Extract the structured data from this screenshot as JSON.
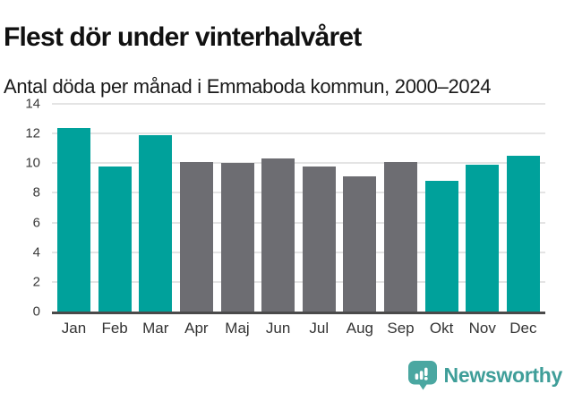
{
  "chart_data": {
    "type": "bar",
    "title": "Flest dör under vinterhalvåret",
    "subtitle": "Antal döda per månad i Emmaboda kommun, 2000–2024",
    "categories": [
      "Jan",
      "Feb",
      "Mar",
      "Apr",
      "Maj",
      "Jun",
      "Jul",
      "Aug",
      "Sep",
      "Okt",
      "Nov",
      "Dec"
    ],
    "values": [
      12.4,
      9.8,
      11.9,
      10.1,
      10.0,
      10.3,
      9.8,
      9.1,
      10.1,
      8.8,
      9.9,
      10.5
    ],
    "highlighted": [
      true,
      true,
      true,
      false,
      false,
      false,
      false,
      false,
      false,
      true,
      true,
      true
    ],
    "colors": {
      "winter_bar": "#00a19b",
      "summer_bar": "#6d6d72",
      "gridline": "#e4e4e4",
      "axis_line": "#4a4a4a"
    },
    "xlabel": "",
    "ylabel": "",
    "ylim": [
      0,
      14
    ],
    "yticks": [
      0,
      2,
      4,
      6,
      8,
      10,
      12,
      14
    ],
    "grid": true,
    "legend": "none"
  },
  "footer": {
    "brand": "Newsworthy",
    "logo_icon": "newsworthy-speech-bubble-bar-chart",
    "brand_color": "#3f9e99",
    "logo_fill": "#4aa7a1"
  }
}
